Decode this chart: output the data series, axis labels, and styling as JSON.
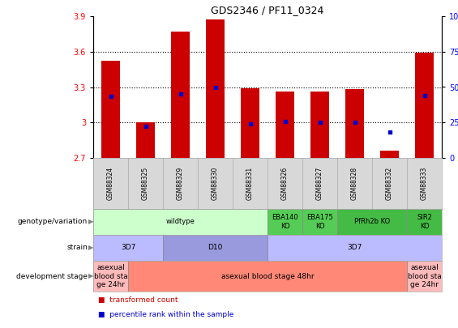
{
  "title": "GDS2346 / PF11_0324",
  "samples": [
    "GSM88324",
    "GSM88325",
    "GSM88329",
    "GSM88330",
    "GSM88331",
    "GSM88326",
    "GSM88327",
    "GSM88328",
    "GSM88332",
    "GSM88333"
  ],
  "bar_bottoms": [
    2.7,
    2.7,
    2.7,
    2.7,
    2.7,
    2.7,
    2.7,
    2.7,
    2.7,
    2.7
  ],
  "bar_tops": [
    3.52,
    3.0,
    3.77,
    3.87,
    3.29,
    3.26,
    3.26,
    3.28,
    2.76,
    3.59
  ],
  "percentile_values": [
    3.22,
    2.97,
    3.24,
    3.3,
    2.99,
    3.01,
    3.0,
    3.0,
    2.92,
    3.23
  ],
  "ylim_left": [
    2.7,
    3.9
  ],
  "ylim_right": [
    0,
    100
  ],
  "yticks_left": [
    2.7,
    3.0,
    3.3,
    3.6,
    3.9
  ],
  "ytick_labels_left": [
    "2.7",
    "3",
    "3.3",
    "3.6",
    "3.9"
  ],
  "yticks_right": [
    0,
    25,
    50,
    75,
    100
  ],
  "ytick_labels_right": [
    "0",
    "25",
    "50",
    "75",
    "100%"
  ],
  "hlines": [
    3.0,
    3.3,
    3.6
  ],
  "bar_color": "#cc0000",
  "dot_color": "#0000cc",
  "sample_bg": "#d8d8d8",
  "genotype_row": {
    "label": "genotype/variation",
    "groups": [
      {
        "text": "wildtype",
        "start": 0,
        "end": 4,
        "color": "#ccffcc"
      },
      {
        "text": "EBA140\nKO",
        "start": 5,
        "end": 5,
        "color": "#55cc55"
      },
      {
        "text": "EBA175\nKO",
        "start": 6,
        "end": 6,
        "color": "#55cc55"
      },
      {
        "text": "PfRh2b KO",
        "start": 7,
        "end": 8,
        "color": "#44bb44"
      },
      {
        "text": "SIR2\nKO",
        "start": 9,
        "end": 9,
        "color": "#44bb44"
      }
    ]
  },
  "strain_row": {
    "label": "strain",
    "groups": [
      {
        "text": "3D7",
        "start": 0,
        "end": 1,
        "color": "#bbbbff"
      },
      {
        "text": "D10",
        "start": 2,
        "end": 4,
        "color": "#9999dd"
      },
      {
        "text": "3D7",
        "start": 5,
        "end": 9,
        "color": "#bbbbff"
      }
    ]
  },
  "dev_row": {
    "label": "development stage",
    "groups": [
      {
        "text": "asexual\nblood sta\nge 24hr",
        "start": 0,
        "end": 0,
        "color": "#ffbbbb"
      },
      {
        "text": "asexual blood stage 48hr",
        "start": 1,
        "end": 8,
        "color": "#ff8877"
      },
      {
        "text": "asexual\nblood sta\nge 24hr",
        "start": 9,
        "end": 9,
        "color": "#ffbbbb"
      }
    ]
  },
  "legend": [
    {
      "color": "#cc0000",
      "label": "transformed count"
    },
    {
      "color": "#0000cc",
      "label": "percentile rank within the sample"
    }
  ]
}
